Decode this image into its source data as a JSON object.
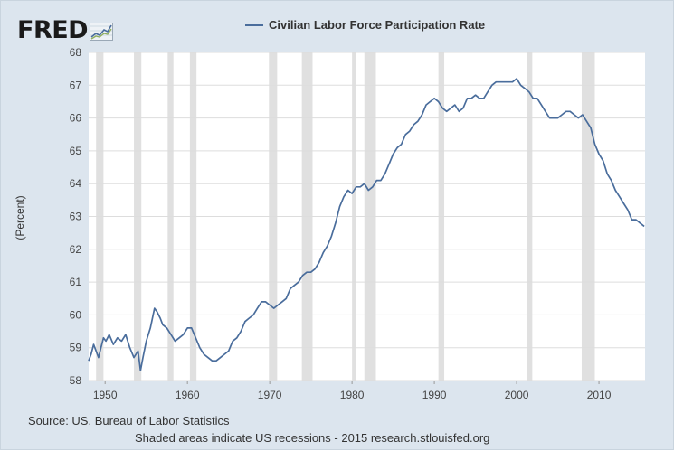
{
  "logo": {
    "text": "FRED",
    "icon": "trend-chart-icon"
  },
  "colors": {
    "series": "#4a6d9c",
    "recession": "#e0e0e0",
    "grid": "#dddddd",
    "frame": "#dce5ee"
  },
  "source_text": "Source: US. Bureau of Labor Statistics",
  "note_text": "Shaded areas indicate US recessions - 2015 research.stlouisfed.org",
  "chart_data": {
    "type": "line",
    "title": "",
    "xlabel": "",
    "ylabel": "(Percent)",
    "xlim": [
      1948,
      2015.6
    ],
    "ylim": [
      58,
      68
    ],
    "yticks": [
      58,
      59,
      60,
      61,
      62,
      63,
      64,
      65,
      66,
      67,
      68
    ],
    "xticks": [
      1950,
      1960,
      1970,
      1980,
      1990,
      2000,
      2010
    ],
    "grid": true,
    "legend": "top",
    "recessions": [
      [
        1948.9,
        1949.8
      ],
      [
        1953.5,
        1954.4
      ],
      [
        1957.6,
        1958.3
      ],
      [
        1960.3,
        1961.1
      ],
      [
        1969.9,
        1970.9
      ],
      [
        1973.9,
        1975.2
      ],
      [
        1980.0,
        1980.5
      ],
      [
        1981.5,
        1982.9
      ],
      [
        1990.5,
        1991.2
      ],
      [
        2001.2,
        2001.9
      ],
      [
        2007.9,
        2009.5
      ]
    ],
    "series": [
      {
        "name": "Civilian Labor Force Participation Rate",
        "color": "#4a6d9c",
        "x": [
          1948.0,
          1948.3,
          1948.6,
          1948.9,
          1949.2,
          1949.5,
          1949.8,
          1950.1,
          1950.5,
          1951.0,
          1951.5,
          1952.0,
          1952.5,
          1953.0,
          1953.5,
          1954.0,
          1954.3,
          1954.6,
          1955.0,
          1955.5,
          1956.0,
          1956.3,
          1956.7,
          1957.0,
          1957.5,
          1958.0,
          1958.5,
          1959.0,
          1959.5,
          1960.0,
          1960.5,
          1961.0,
          1961.5,
          1962.0,
          1962.5,
          1963.0,
          1963.5,
          1964.0,
          1964.5,
          1965.0,
          1965.5,
          1966.0,
          1966.5,
          1967.0,
          1967.5,
          1968.0,
          1968.5,
          1969.0,
          1969.5,
          1970.0,
          1970.5,
          1971.0,
          1971.5,
          1972.0,
          1972.5,
          1973.0,
          1973.5,
          1974.0,
          1974.5,
          1975.0,
          1975.5,
          1976.0,
          1976.5,
          1977.0,
          1977.5,
          1978.0,
          1978.5,
          1979.0,
          1979.5,
          1980.0,
          1980.5,
          1981.0,
          1981.5,
          1982.0,
          1982.5,
          1983.0,
          1983.5,
          1984.0,
          1984.5,
          1985.0,
          1985.5,
          1986.0,
          1986.5,
          1987.0,
          1987.5,
          1988.0,
          1988.5,
          1989.0,
          1989.5,
          1990.0,
          1990.5,
          1991.0,
          1991.5,
          1992.0,
          1992.5,
          1993.0,
          1993.5,
          1994.0,
          1994.5,
          1995.0,
          1995.5,
          1996.0,
          1996.5,
          1997.0,
          1997.5,
          1998.0,
          1998.5,
          1999.0,
          1999.5,
          2000.0,
          2000.5,
          2001.0,
          2001.5,
          2002.0,
          2002.5,
          2003.0,
          2003.5,
          2004.0,
          2004.5,
          2005.0,
          2005.5,
          2006.0,
          2006.5,
          2007.0,
          2007.5,
          2008.0,
          2008.5,
          2009.0,
          2009.5,
          2010.0,
          2010.5,
          2011.0,
          2011.5,
          2012.0,
          2012.5,
          2013.0,
          2013.5,
          2014.0,
          2014.5,
          2015.0,
          2015.5
        ],
        "values": [
          58.6,
          58.8,
          59.1,
          58.9,
          58.7,
          59.0,
          59.3,
          59.2,
          59.4,
          59.1,
          59.3,
          59.2,
          59.4,
          59.0,
          58.7,
          58.9,
          58.3,
          58.7,
          59.2,
          59.6,
          60.2,
          60.1,
          59.9,
          59.7,
          59.6,
          59.4,
          59.2,
          59.3,
          59.4,
          59.6,
          59.6,
          59.3,
          59.0,
          58.8,
          58.7,
          58.6,
          58.6,
          58.7,
          58.8,
          58.9,
          59.2,
          59.3,
          59.5,
          59.8,
          59.9,
          60.0,
          60.2,
          60.4,
          60.4,
          60.3,
          60.2,
          60.3,
          60.4,
          60.5,
          60.8,
          60.9,
          61.0,
          61.2,
          61.3,
          61.3,
          61.4,
          61.6,
          61.9,
          62.1,
          62.4,
          62.8,
          63.3,
          63.6,
          63.8,
          63.7,
          63.9,
          63.9,
          64.0,
          63.8,
          63.9,
          64.1,
          64.1,
          64.3,
          64.6,
          64.9,
          65.1,
          65.2,
          65.5,
          65.6,
          65.8,
          65.9,
          66.1,
          66.4,
          66.5,
          66.6,
          66.5,
          66.3,
          66.2,
          66.3,
          66.4,
          66.2,
          66.3,
          66.6,
          66.6,
          66.7,
          66.6,
          66.6,
          66.8,
          67.0,
          67.1,
          67.1,
          67.1,
          67.1,
          67.1,
          67.2,
          67.0,
          66.9,
          66.8,
          66.6,
          66.6,
          66.4,
          66.2,
          66.0,
          66.0,
          66.0,
          66.1,
          66.2,
          66.2,
          66.1,
          66.0,
          66.1,
          65.9,
          65.7,
          65.2,
          64.9,
          64.7,
          64.3,
          64.1,
          63.8,
          63.6,
          63.4,
          63.2,
          62.9,
          62.9,
          62.8,
          62.7
        ]
      }
    ]
  }
}
